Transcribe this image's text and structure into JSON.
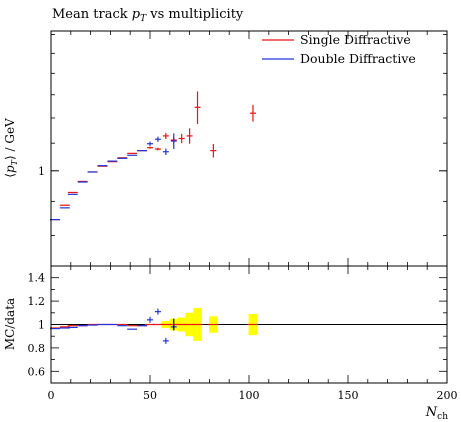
{
  "chart_data": [
    {
      "type": "scatter",
      "title_prefix": "Mean track ",
      "title_symbol": "p",
      "title_subscript": "T",
      "title_suffix": " vs multiplicity",
      "ylabel_symbol": "p",
      "ylabel_subscript": "T",
      "ylabel_unit": " / GeV",
      "y_scale": "log",
      "ylim": [
        0.72,
        1.62
      ],
      "y_ticks": [
        {
          "value": 1.0,
          "label": "1"
        }
      ],
      "x_range": [
        0,
        200
      ],
      "legend_position": "top-right",
      "reference_style": "horizontal steps",
      "series": [
        {
          "name": "Single Diffractive",
          "color": "#ee1111",
          "points": [
            {
              "x": 2,
              "y": 0.845
            },
            {
              "x": 7,
              "y": 0.888
            },
            {
              "x": 11,
              "y": 0.928
            },
            {
              "x": 16,
              "y": 0.964
            },
            {
              "x": 21,
              "y": 0.996
            },
            {
              "x": 26,
              "y": 1.016
            },
            {
              "x": 31,
              "y": 1.032
            },
            {
              "x": 36,
              "y": 1.046
            },
            {
              "x": 41,
              "y": 1.062
            },
            {
              "x": 46,
              "y": 1.072
            },
            {
              "x": 50,
              "y": 1.083,
              "err": 0.004
            },
            {
              "x": 54,
              "y": 1.078,
              "err": 0.005
            },
            {
              "x": 58,
              "y": 1.128,
              "err": 0.012
            },
            {
              "x": 62,
              "y": 1.112,
              "err": 0.012
            },
            {
              "x": 66,
              "y": 1.118,
              "err": 0.018
            },
            {
              "x": 70,
              "y": 1.128,
              "err": 0.03
            },
            {
              "x": 74,
              "y": 1.245,
              "err": 0.07
            },
            {
              "x": 82,
              "y": 1.072,
              "err": 0.025
            },
            {
              "x": 102,
              "y": 1.22,
              "err": 0.035
            }
          ]
        },
        {
          "name": "Double Diffractive",
          "color": "#2233dd",
          "points": [
            {
              "x": 2,
              "y": 0.845
            },
            {
              "x": 7,
              "y": 0.88
            },
            {
              "x": 11,
              "y": 0.922
            },
            {
              "x": 16,
              "y": 0.962
            },
            {
              "x": 21,
              "y": 0.996
            },
            {
              "x": 26,
              "y": 1.018
            },
            {
              "x": 31,
              "y": 1.034
            },
            {
              "x": 36,
              "y": 1.044
            },
            {
              "x": 41,
              "y": 1.055
            },
            {
              "x": 46,
              "y": 1.072
            },
            {
              "x": 50,
              "y": 1.098,
              "err": 0.008
            },
            {
              "x": 54,
              "y": 1.115,
              "err": 0.01
            },
            {
              "x": 58,
              "y": 1.068,
              "err": 0.012
            },
            {
              "x": 62,
              "y": 1.108,
              "err": 0.03
            }
          ]
        }
      ]
    },
    {
      "type": "scatter",
      "ylabel": "MC/data",
      "xlabel_symbol": "N",
      "xlabel_subscript": "ch",
      "ylim": [
        0.5,
        1.5
      ],
      "x_range": [
        0,
        200
      ],
      "y_ticks": [
        "0.6",
        "0.8",
        "1",
        "1.2",
        "1.4"
      ],
      "x_ticks": [
        "0",
        "50",
        "100",
        "150",
        "200"
      ],
      "band_color": "#ffff00",
      "reference_y": 1.0,
      "uncertainty_bands": [
        {
          "x": 58,
          "lo": 0.97,
          "hi": 1.03
        },
        {
          "x": 62,
          "lo": 0.95,
          "hi": 1.05
        },
        {
          "x": 66,
          "lo": 0.94,
          "hi": 1.06
        },
        {
          "x": 70,
          "lo": 0.9,
          "hi": 1.1
        },
        {
          "x": 74,
          "lo": 0.86,
          "hi": 1.14
        },
        {
          "x": 82,
          "lo": 0.93,
          "hi": 1.07
        },
        {
          "x": 102,
          "lo": 0.91,
          "hi": 1.09
        }
      ],
      "series": [
        {
          "name": "Single Diffractive",
          "color": "#ee1111",
          "points": [
            {
              "x": 2,
              "y": 0.97
            },
            {
              "x": 7,
              "y": 0.98
            },
            {
              "x": 11,
              "y": 0.99
            },
            {
              "x": 16,
              "y": 0.99
            },
            {
              "x": 21,
              "y": 1.0
            },
            {
              "x": 26,
              "y": 1.0
            },
            {
              "x": 31,
              "y": 1.0
            },
            {
              "x": 36,
              "y": 1.0
            },
            {
              "x": 41,
              "y": 0.99
            },
            {
              "x": 46,
              "y": 0.99
            },
            {
              "x": 50,
              "y": 1.0
            },
            {
              "x": 54,
              "y": 1.0
            },
            {
              "x": 58,
              "y": 1.0
            },
            {
              "x": 62,
              "y": 1.0
            },
            {
              "x": 66,
              "y": 1.0
            },
            {
              "x": 70,
              "y": 1.0
            },
            {
              "x": 74,
              "y": 1.0
            },
            {
              "x": 82,
              "y": 1.0
            },
            {
              "x": 102,
              "y": 1.0
            }
          ]
        },
        {
          "name": "Double Diffractive",
          "color": "#2233dd",
          "points": [
            {
              "x": 2,
              "y": 0.965
            },
            {
              "x": 7,
              "y": 0.97
            },
            {
              "x": 11,
              "y": 0.975
            },
            {
              "x": 16,
              "y": 0.99
            },
            {
              "x": 21,
              "y": 0.995
            },
            {
              "x": 26,
              "y": 1.0
            },
            {
              "x": 31,
              "y": 1.0
            },
            {
              "x": 36,
              "y": 0.99
            },
            {
              "x": 41,
              "y": 0.96
            },
            {
              "x": 46,
              "y": 0.99
            },
            {
              "x": 50,
              "y": 1.04
            },
            {
              "x": 54,
              "y": 1.11
            },
            {
              "x": 58,
              "y": 0.86
            },
            {
              "x": 62,
              "y": 0.98
            }
          ]
        }
      ]
    }
  ]
}
